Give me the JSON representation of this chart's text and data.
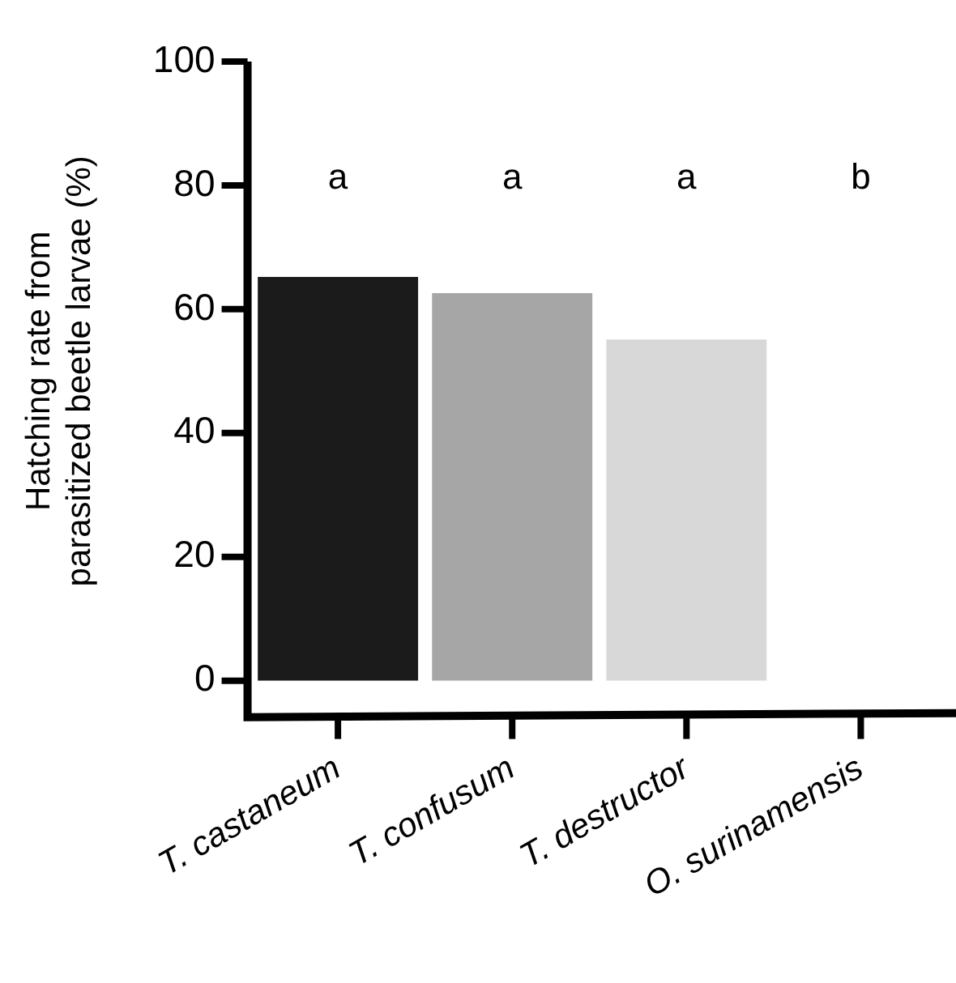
{
  "chart_data": {
    "type": "bar",
    "ylabel": "Hatching rate from\nparasitized beetle larvae (%)",
    "categories": [
      "T. castaneum",
      "T. confusum",
      "T. destructor",
      "O. surinamensis"
    ],
    "values": [
      65.2,
      62.6,
      55.1,
      0
    ],
    "colors": [
      "#1b1b1b",
      "#a6a6a6",
      "#d8d8d8",
      "#ffffff"
    ],
    "ylim": [
      0,
      100
    ],
    "yticks": [
      0,
      20,
      40,
      60,
      80,
      100
    ],
    "grid": false,
    "legend": false,
    "annotations": [
      "a",
      "a",
      "a",
      "b"
    ]
  }
}
